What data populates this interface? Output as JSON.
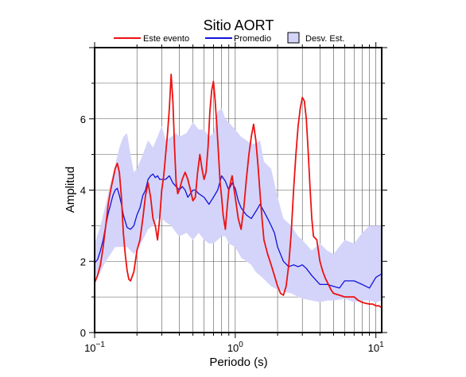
{
  "chart_data": {
    "type": "line",
    "title": "Sitio AORT",
    "xlabel": "Periodo (s)",
    "ylabel": "Amplitud",
    "x_scale": "log",
    "xlim": [
      0.1,
      11
    ],
    "ylim": [
      0,
      8
    ],
    "grid": true,
    "legend_position": "top",
    "x_tick_labels": [
      {
        "value": 0.1,
        "base": "10",
        "exp": "−1"
      },
      {
        "value": 1,
        "base": "10",
        "exp": "0"
      },
      {
        "value": 10,
        "base": "10",
        "exp": "1"
      }
    ],
    "y_ticks": [
      0,
      2,
      4,
      6
    ],
    "legend": [
      {
        "label": "Este evento",
        "kind": "line",
        "color": "#ee1111"
      },
      {
        "label": "Promedio",
        "kind": "line",
        "color": "#1111dd"
      },
      {
        "label": "Desv. Est.",
        "kind": "band",
        "color": "#d4d4fa"
      }
    ],
    "series": [
      {
        "name": "Este evento",
        "color": "#ee1111",
        "x": [
          0.1,
          0.105,
          0.11,
          0.115,
          0.12,
          0.125,
          0.13,
          0.135,
          0.14,
          0.145,
          0.15,
          0.155,
          0.16,
          0.165,
          0.17,
          0.175,
          0.18,
          0.19,
          0.2,
          0.21,
          0.22,
          0.23,
          0.24,
          0.25,
          0.26,
          0.27,
          0.28,
          0.29,
          0.3,
          0.31,
          0.32,
          0.33,
          0.34,
          0.35,
          0.36,
          0.37,
          0.38,
          0.39,
          0.4,
          0.42,
          0.44,
          0.46,
          0.48,
          0.5,
          0.52,
          0.54,
          0.56,
          0.58,
          0.6,
          0.62,
          0.64,
          0.66,
          0.68,
          0.7,
          0.72,
          0.74,
          0.76,
          0.78,
          0.8,
          0.82,
          0.85,
          0.88,
          0.9,
          0.95,
          1.0,
          1.05,
          1.1,
          1.15,
          1.2,
          1.25,
          1.3,
          1.35,
          1.4,
          1.45,
          1.5,
          1.55,
          1.6,
          1.7,
          1.8,
          1.9,
          2.0,
          2.1,
          2.2,
          2.3,
          2.4,
          2.5,
          2.6,
          2.7,
          2.8,
          2.9,
          3.0,
          3.1,
          3.2,
          3.3,
          3.4,
          3.5,
          3.6,
          3.8,
          4.0,
          4.2,
          4.4,
          4.6,
          4.8,
          5.0,
          5.5,
          6.0,
          6.5,
          7.0,
          7.5,
          8.0,
          8.5,
          9.0,
          9.5,
          10.0,
          10.5,
          11.0
        ],
        "y": [
          1.4,
          1.6,
          1.9,
          2.4,
          3.0,
          3.6,
          4.0,
          4.3,
          4.6,
          4.75,
          4.5,
          3.8,
          2.8,
          2.2,
          1.75,
          1.5,
          1.45,
          1.7,
          2.3,
          2.6,
          3.2,
          3.85,
          4.2,
          3.8,
          3.2,
          3.0,
          2.6,
          3.2,
          4.0,
          4.4,
          5.0,
          5.6,
          6.3,
          7.25,
          6.5,
          5.2,
          4.2,
          3.9,
          4.0,
          4.3,
          4.5,
          4.3,
          4.0,
          3.7,
          3.8,
          4.5,
          5.0,
          4.6,
          4.3,
          4.5,
          5.2,
          6.2,
          6.8,
          7.05,
          6.5,
          5.8,
          5.0,
          4.2,
          3.8,
          3.3,
          2.9,
          3.6,
          4.0,
          4.4,
          3.8,
          3.2,
          2.9,
          3.5,
          4.3,
          5.0,
          5.5,
          5.85,
          5.4,
          4.7,
          3.9,
          3.2,
          2.6,
          2.2,
          1.9,
          1.6,
          1.3,
          1.1,
          1.05,
          1.3,
          1.9,
          2.8,
          4.0,
          5.0,
          5.8,
          6.3,
          6.6,
          6.5,
          6.0,
          5.1,
          4.1,
          3.2,
          2.7,
          2.6,
          2.0,
          1.7,
          1.5,
          1.35,
          1.2,
          1.1,
          1.05,
          1.0,
          1.0,
          1.0,
          0.9,
          0.85,
          0.82,
          0.8,
          0.8,
          0.75,
          0.75,
          0.7
        ]
      },
      {
        "name": "Promedio",
        "color": "#1111dd",
        "x": [
          0.1,
          0.105,
          0.11,
          0.115,
          0.12,
          0.125,
          0.13,
          0.135,
          0.14,
          0.145,
          0.15,
          0.155,
          0.16,
          0.17,
          0.18,
          0.19,
          0.2,
          0.21,
          0.22,
          0.23,
          0.24,
          0.25,
          0.26,
          0.27,
          0.28,
          0.29,
          0.3,
          0.32,
          0.34,
          0.36,
          0.38,
          0.4,
          0.42,
          0.44,
          0.46,
          0.48,
          0.5,
          0.52,
          0.55,
          0.6,
          0.65,
          0.7,
          0.75,
          0.8,
          0.85,
          0.9,
          0.95,
          1.0,
          1.05,
          1.1,
          1.2,
          1.3,
          1.4,
          1.5,
          1.6,
          1.7,
          1.8,
          1.9,
          2.0,
          2.2,
          2.4,
          2.6,
          2.8,
          3.0,
          3.2,
          3.5,
          4.0,
          4.5,
          5.0,
          5.5,
          6.0,
          7.0,
          8.0,
          9.0,
          10.0,
          11.0
        ],
        "y": [
          1.95,
          2.05,
          2.3,
          2.6,
          3.0,
          3.35,
          3.6,
          3.85,
          4.0,
          4.05,
          3.85,
          3.6,
          3.3,
          2.95,
          2.9,
          3.0,
          3.3,
          3.5,
          3.85,
          4.0,
          4.3,
          4.4,
          4.45,
          4.35,
          4.4,
          4.3,
          4.3,
          4.3,
          4.4,
          4.2,
          4.1,
          4.0,
          4.1,
          4.0,
          3.8,
          3.9,
          4.0,
          4.0,
          3.9,
          3.8,
          3.6,
          3.8,
          4.0,
          4.4,
          4.25,
          4.0,
          4.2,
          4.05,
          3.7,
          3.5,
          3.3,
          3.2,
          3.4,
          3.6,
          3.4,
          3.2,
          3.0,
          2.8,
          2.4,
          2.0,
          1.85,
          1.9,
          1.85,
          1.9,
          1.8,
          1.6,
          1.35,
          1.35,
          1.3,
          1.25,
          1.45,
          1.45,
          1.35,
          1.25,
          1.55,
          1.65
        ]
      }
    ],
    "band": {
      "name": "Desv. Est.",
      "color": "#d4d4fa",
      "x": [
        0.1,
        0.11,
        0.12,
        0.13,
        0.14,
        0.15,
        0.16,
        0.17,
        0.18,
        0.19,
        0.2,
        0.22,
        0.24,
        0.26,
        0.28,
        0.3,
        0.32,
        0.35,
        0.38,
        0.4,
        0.45,
        0.5,
        0.55,
        0.6,
        0.65,
        0.7,
        0.75,
        0.8,
        0.85,
        0.9,
        1.0,
        1.1,
        1.2,
        1.3,
        1.4,
        1.5,
        1.6,
        1.8,
        2.0,
        2.2,
        2.5,
        2.8,
        3.0,
        3.5,
        4.0,
        4.5,
        5.0,
        6.0,
        7.0,
        8.0,
        9.0,
        10.0,
        11.0
      ],
      "upper": [
        2.5,
        3.0,
        3.6,
        4.2,
        4.7,
        5.2,
        5.5,
        5.6,
        5.0,
        4.5,
        4.6,
        5.0,
        5.4,
        5.2,
        5.5,
        5.8,
        5.4,
        5.5,
        5.6,
        5.5,
        5.6,
        5.9,
        5.7,
        5.7,
        5.5,
        5.6,
        6.2,
        6.3,
        6.0,
        5.9,
        5.7,
        5.5,
        5.4,
        5.3,
        5.3,
        5.4,
        4.8,
        4.6,
        3.8,
        3.2,
        3.0,
        2.7,
        2.6,
        2.3,
        2.5,
        2.3,
        2.2,
        2.6,
        2.5,
        2.8,
        3.0,
        3.0,
        3.0
      ],
      "lower": [
        1.5,
        1.7,
        2.0,
        2.2,
        2.4,
        2.4,
        2.4,
        2.4,
        2.3,
        2.2,
        2.3,
        2.6,
        2.9,
        3.0,
        3.2,
        3.2,
        3.1,
        3.0,
        2.8,
        2.7,
        2.8,
        2.6,
        2.8,
        2.6,
        2.5,
        2.5,
        2.6,
        2.7,
        2.7,
        2.5,
        2.4,
        2.1,
        2.0,
        1.9,
        1.7,
        1.6,
        1.5,
        1.3,
        1.2,
        1.15,
        1.1,
        1.0,
        0.95,
        0.9,
        0.85,
        0.9,
        0.9,
        0.95,
        0.85,
        0.9,
        0.9,
        0.85,
        0.9
      ]
    }
  }
}
